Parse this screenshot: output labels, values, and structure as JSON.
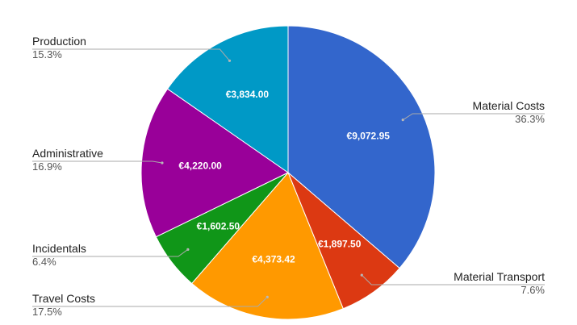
{
  "chart_data": {
    "type": "pie",
    "title": "",
    "start_angle_deg": 0,
    "direction": "clockwise",
    "legend": "callouts",
    "slices": [
      {
        "label": "Material Costs",
        "value": 9072.95,
        "value_label": "€9,072.95",
        "percent": "36.3%",
        "color": "#3366cc"
      },
      {
        "label": "Material Transport",
        "value": 1897.5,
        "value_label": "€1,897.50",
        "percent": "7.6%",
        "color": "#dc3912"
      },
      {
        "label": "Travel Costs",
        "value": 4373.42,
        "value_label": "€4,373.42",
        "percent": "17.5%",
        "color": "#ff9900"
      },
      {
        "label": "Incidentals",
        "value": 1602.5,
        "value_label": "€1,602.50",
        "percent": "6.4%",
        "color": "#109618"
      },
      {
        "label": "Administrative",
        "value": 4220.0,
        "value_label": "€4,220.00",
        "percent": "16.9%",
        "color": "#990099"
      },
      {
        "label": "Production",
        "value": 3834.0,
        "value_label": "€3,834.00",
        "percent": "15.3%",
        "color": "#0099c6"
      }
    ]
  }
}
